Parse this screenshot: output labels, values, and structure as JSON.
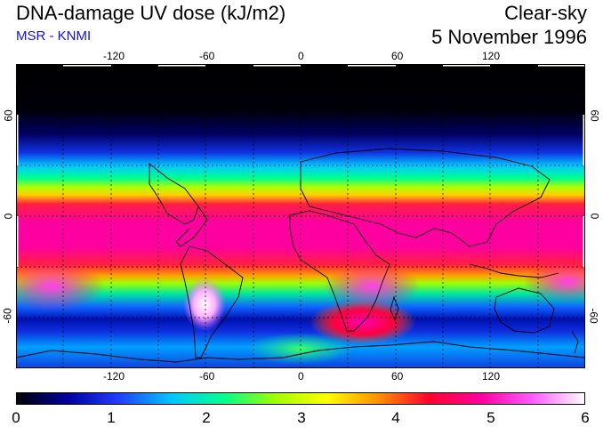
{
  "header": {
    "title": "DNA-damage UV dose (kJ/m2)",
    "source": "MSR - KNMI",
    "condition": "Clear-sky",
    "date": "5 November 1996"
  },
  "map": {
    "longitude_ticks": [
      "-120",
      "-60",
      "0",
      "60",
      "120"
    ],
    "latitude_ticks": [
      "60",
      "0",
      "-60"
    ],
    "lon_range": [
      -180,
      180
    ],
    "lat_range": [
      -90,
      90
    ]
  },
  "colorbar": {
    "labels": [
      "0",
      "1",
      "2",
      "3",
      "4",
      "5",
      "6"
    ],
    "range": [
      0,
      6
    ],
    "stops": [
      "#000000",
      "#0000a0",
      "#2040ff",
      "#00c8ff",
      "#00ff90",
      "#a0ff00",
      "#ffff00",
      "#ff9000",
      "#ff0030",
      "#ff00a0",
      "#ff60ff",
      "#ffffff"
    ]
  }
}
